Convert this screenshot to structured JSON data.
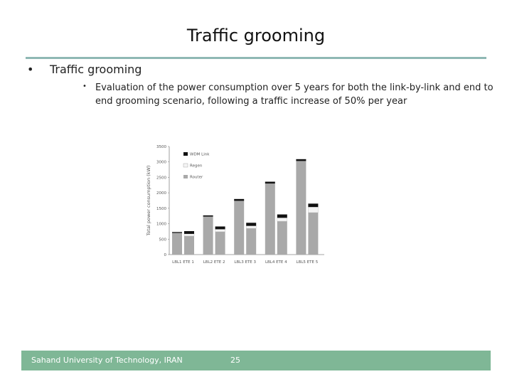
{
  "slide": {
    "title": "Traffic grooming",
    "bullet1": "Traffic grooming",
    "bullet2": "Evaluation of the power consumption over 5 years for both the link-by-link and end to end grooming scenario, following a traffic increase of 50% per year"
  },
  "footer": {
    "institution": "Sahand University of Technology, IRAN",
    "page": "25"
  },
  "chart_data": {
    "type": "bar",
    "stacked": true,
    "ylabel": "Total power consumption (kW)",
    "ylim": [
      0,
      3500
    ],
    "yticks": [
      0,
      500,
      1000,
      1500,
      2000,
      2500,
      3000,
      3500
    ],
    "grid": false,
    "legend_position": "top-right",
    "groups": [
      "LBL1 ETE 1",
      "LBL2 ETE 2",
      "LBL3 ETE 3",
      "LBL4 ETE 4",
      "LBL5 ETE 5"
    ],
    "bars": [
      "LBL",
      "ETE"
    ],
    "series": [
      {
        "name": "WDM Link",
        "color": "#111111",
        "values": [
          [
            30,
            90
          ],
          [
            40,
            90
          ],
          [
            60,
            100
          ],
          [
            60,
            110
          ],
          [
            60,
            110
          ]
        ]
      },
      {
        "name": "Regen",
        "color": "#f4f4f4",
        "values": [
          [
            0,
            70
          ],
          [
            0,
            80
          ],
          [
            0,
            80
          ],
          [
            0,
            110
          ],
          [
            0,
            180
          ]
        ]
      },
      {
        "name": "Router",
        "color": "#a9a9a9",
        "values": [
          [
            700,
            600
          ],
          [
            1230,
            740
          ],
          [
            1740,
            850
          ],
          [
            2300,
            1080
          ],
          [
            3030,
            1360
          ]
        ]
      }
    ]
  }
}
